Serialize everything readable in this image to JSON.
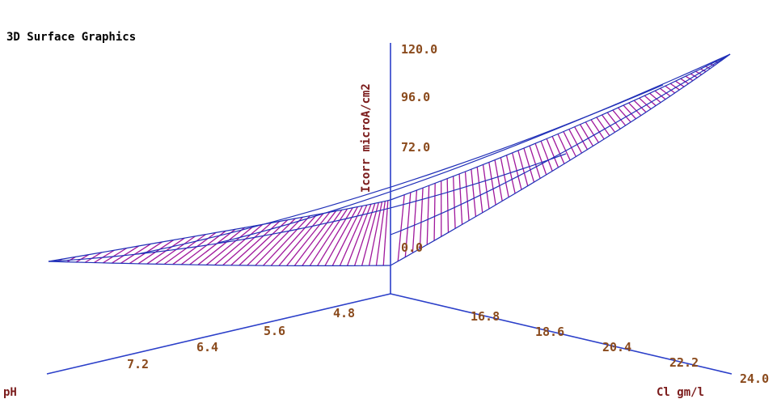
{
  "chart_data": {
    "type": "surface3d",
    "title": "3D Surface Graphics",
    "zlabel": "Icorr microA/cm2",
    "xlabel": "pH",
    "ylabel": "Cl gm/l",
    "z_ticks": [
      "120.0",
      "96.0",
      "72.0",
      "0.0"
    ],
    "x_ticks": [
      "4.8",
      "5.6",
      "6.4",
      "7.2"
    ],
    "y_ticks": [
      "16.8",
      "18.6",
      "20.4",
      "22.2",
      "24.0"
    ],
    "surface_corners": {
      "min_pH_min_Cl": 0,
      "max_pH_min_Cl": 0,
      "min_pH_max_Cl": 120
    },
    "colors": {
      "axis": "#2b3fc9",
      "fill_hatch": "#a0189c",
      "mesh": "#2030b8",
      "tick_text": "#8a4a1c",
      "axis_label": "#7a1a1a"
    }
  }
}
